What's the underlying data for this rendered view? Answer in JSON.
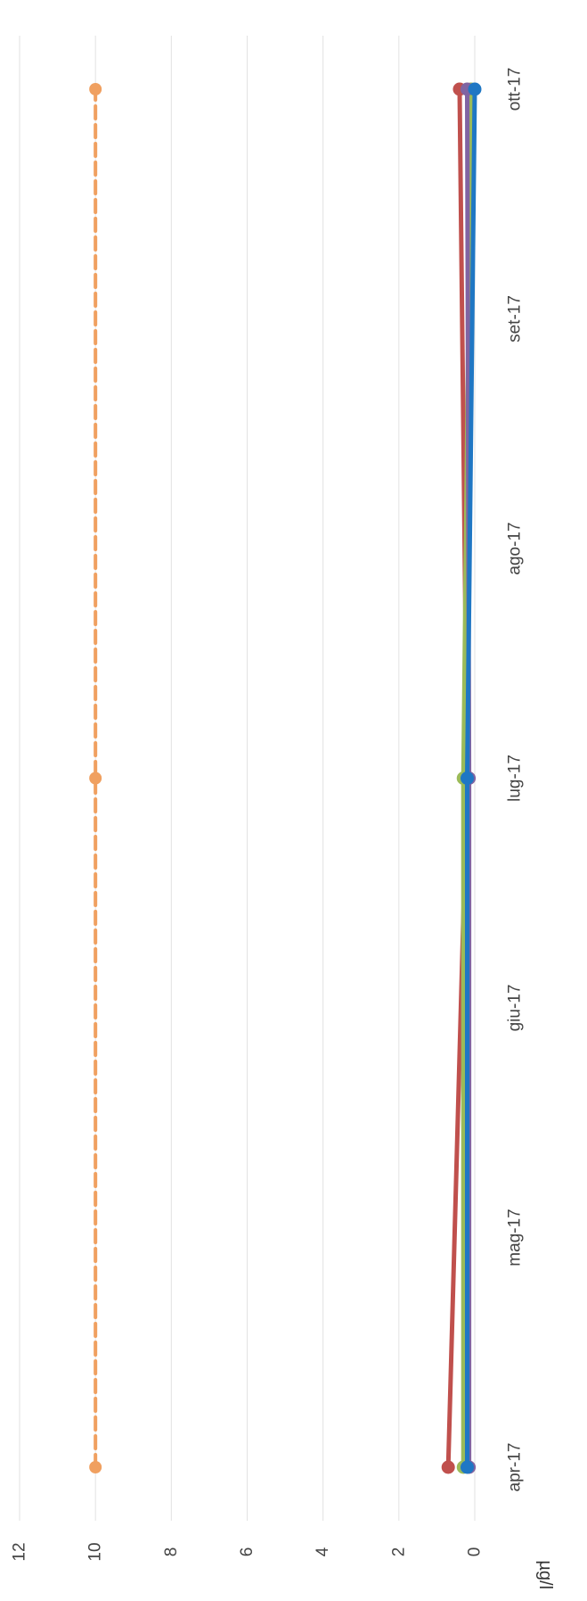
{
  "chart_data": {
    "type": "line",
    "ylabel": "µg/l",
    "ylim": [
      0,
      12
    ],
    "yticks": [
      "0",
      "2",
      "4",
      "6",
      "8",
      "10",
      "12"
    ],
    "categories": [
      "apr-17",
      "mag-17",
      "giu-17",
      "lug-17",
      "ago-17",
      "set-17",
      "ott-17"
    ],
    "grid": true,
    "orientation": "rotated 90° clockwise",
    "series": [
      {
        "color": "#F0A060",
        "dashed": true,
        "points": [
          [
            0,
            10.0
          ],
          [
            3,
            10.0
          ],
          [
            6,
            10.0
          ]
        ]
      },
      {
        "color": "#C0504D",
        "dashed": false,
        "points": [
          [
            0,
            0.7
          ],
          [
            3,
            0.2
          ],
          [
            6,
            0.4
          ]
        ]
      },
      {
        "color": "#9BBB59",
        "dashed": false,
        "points": [
          [
            0,
            0.3
          ],
          [
            3,
            0.3
          ],
          [
            6,
            0.1
          ]
        ]
      },
      {
        "color": "#8064A2",
        "dashed": false,
        "points": [
          [
            0,
            0.15
          ],
          [
            3,
            0.15
          ],
          [
            6,
            0.2
          ]
        ]
      },
      {
        "color": "#1F77C4",
        "dashed": false,
        "points": [
          [
            0,
            0.2
          ],
          [
            3,
            0.2
          ],
          [
            6,
            0.0
          ]
        ]
      }
    ]
  }
}
